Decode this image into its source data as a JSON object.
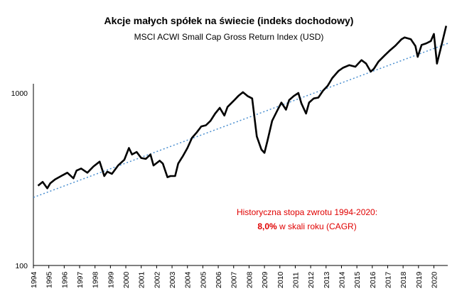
{
  "chart_data": {
    "type": "line",
    "title": "Akcje małych spółek na świecie (indeks dochodowy)",
    "subtitle": "MSCI ACWI Small Cap Gross Return Index (USD)",
    "y_scale": "log",
    "ylim": [
      100,
      2600
    ],
    "y_ticks": [
      "100",
      "1000"
    ],
    "xlim": [
      1994,
      2020.9
    ],
    "x_ticks": [
      "1994",
      "1995",
      "1996",
      "1997",
      "1998",
      "1999",
      "2000",
      "2001",
      "2002",
      "2003",
      "2004",
      "2005",
      "2006",
      "2007",
      "2008",
      "2009",
      "2010",
      "2011",
      "2012",
      "2013",
      "2014",
      "2015",
      "2016",
      "2017",
      "2018",
      "2019",
      "2020"
    ],
    "grid": false,
    "colors": {
      "series": "#000000",
      "trend": "#4a8fd0",
      "annotation": "#e00000"
    },
    "series": [
      {
        "style": "solid",
        "x": [
          1994.3,
          1994.6,
          1994.9,
          1995.1,
          1995.4,
          1995.8,
          1996.2,
          1996.6,
          1996.8,
          1997.1,
          1997.5,
          1997.9,
          1998.3,
          1998.6,
          1998.8,
          1999.1,
          1999.5,
          1999.9,
          2000.2,
          2000.4,
          2000.7,
          2001.0,
          2001.3,
          2001.6,
          2001.8,
          2002.2,
          2002.4,
          2002.7,
          2002.9,
          2003.2,
          2003.4,
          2003.7,
          2004.0,
          2004.3,
          2004.6,
          2004.9,
          2005.2,
          2005.5,
          2005.8,
          2006.1,
          2006.4,
          2006.6,
          2007.0,
          2007.3,
          2007.6,
          2007.9,
          2008.2,
          2008.5,
          2008.8,
          2009.0,
          2009.2,
          2009.5,
          2009.8,
          2010.1,
          2010.4,
          2010.6,
          2010.9,
          2011.2,
          2011.4,
          2011.7,
          2011.9,
          2012.2,
          2012.5,
          2012.8,
          2013.1,
          2013.4,
          2013.8,
          2014.1,
          2014.5,
          2014.9,
          2015.3,
          2015.6,
          2015.9,
          2016.1,
          2016.4,
          2016.8,
          2017.1,
          2017.5,
          2017.9,
          2018.1,
          2018.5,
          2018.8,
          2018.95,
          2019.2,
          2019.5,
          2019.8,
          2020.0,
          2020.2,
          2020.5,
          2020.8
        ],
        "y": [
          290,
          305,
          280,
          300,
          315,
          330,
          345,
          320,
          355,
          365,
          345,
          375,
          400,
          330,
          350,
          340,
          380,
          410,
          480,
          440,
          455,
          420,
          415,
          440,
          380,
          405,
          390,
          325,
          330,
          330,
          390,
          430,
          480,
          550,
          590,
          640,
          650,
          690,
          760,
          820,
          740,
          830,
          900,
          960,
          1010,
          960,
          930,
          560,
          470,
          450,
          530,
          690,
          780,
          880,
          800,
          910,
          960,
          1000,
          870,
          760,
          880,
          930,
          940,
          1030,
          1100,
          1220,
          1340,
          1400,
          1450,
          1420,
          1550,
          1480,
          1330,
          1380,
          1520,
          1650,
          1750,
          1880,
          2050,
          2100,
          2050,
          1870,
          1620,
          1900,
          1940,
          2000,
          2200,
          1480,
          1900,
          2450
        ]
      },
      {
        "style": "dotted",
        "x": [
          1994,
          2020.9
        ],
        "y": [
          248,
          1940
        ]
      }
    ],
    "annotation": {
      "line1": "Historyczna stopa zwrotu 1994-2020:",
      "line2_value": "8,0%",
      "line2_rest": " w skali roku (CAGR)"
    }
  }
}
